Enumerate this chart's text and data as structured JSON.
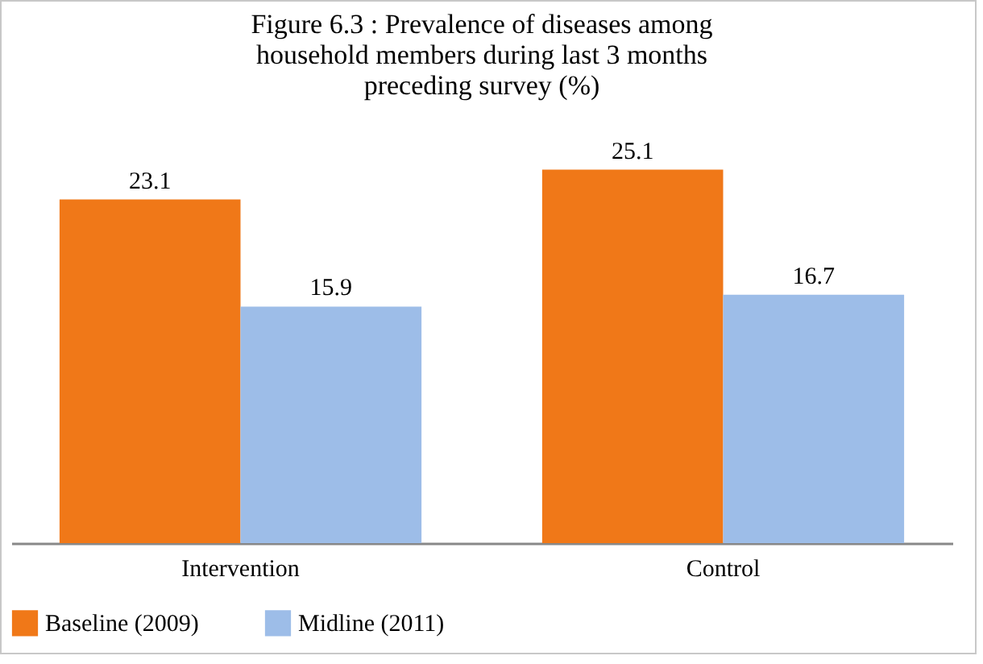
{
  "chart_data": {
    "type": "bar",
    "title": "Figure 6.3 : Prevalence of diseases among household members during last 3 months preceding survey (%)",
    "categories": [
      "Intervention",
      "Control"
    ],
    "series": [
      {
        "name": "Baseline (2009)",
        "color": "#f07818",
        "values": [
          23.1,
          25.1
        ]
      },
      {
        "name": "Midline (2011)",
        "color": "#9dbde8",
        "values": [
          15.9,
          16.7
        ]
      }
    ],
    "data_labels": true,
    "legend": "bottom",
    "grid": false
  }
}
